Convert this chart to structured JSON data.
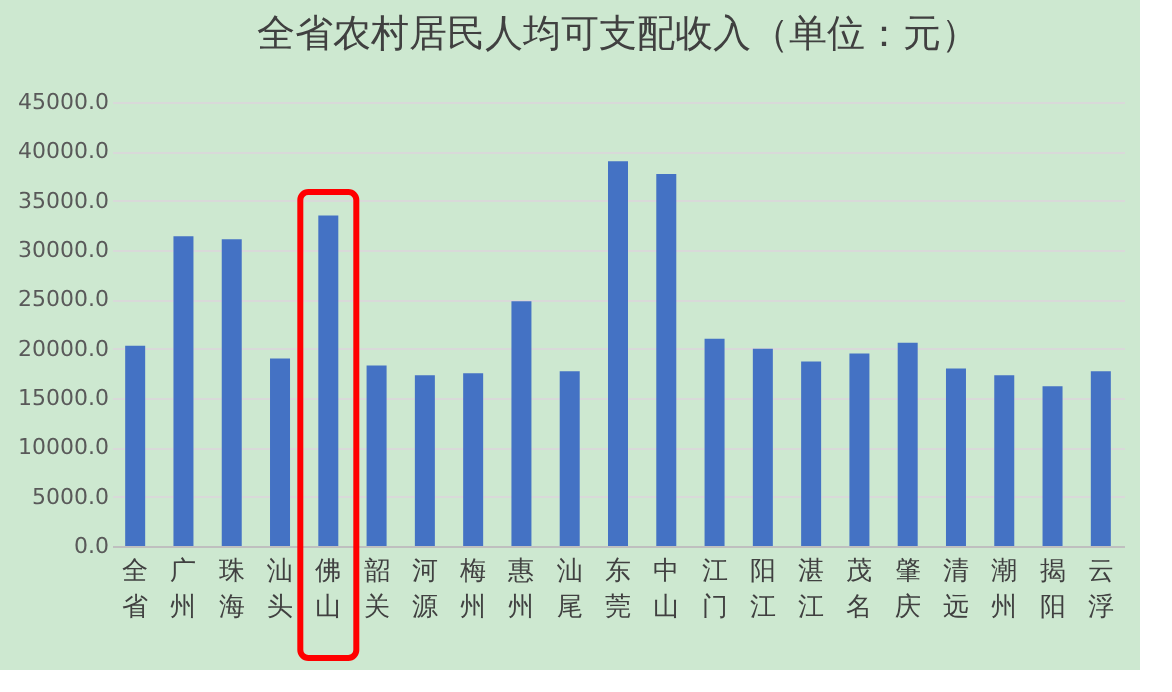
{
  "chart_data": {
    "type": "bar",
    "title": "全省农村居民人均可支配收入（单位：元）",
    "categories": [
      "全省",
      "广州",
      "珠海",
      "汕头",
      "佛山",
      "韶关",
      "河源",
      "梅州",
      "惠州",
      "汕尾",
      "东莞",
      "中山",
      "江门",
      "阳江",
      "湛江",
      "茂名",
      "肇庆",
      "清远",
      "潮州",
      "揭阳",
      "云浮"
    ],
    "values": [
      20300,
      31400,
      31100,
      19000,
      33500,
      18300,
      17300,
      17500,
      24800,
      17700,
      39000,
      37700,
      21000,
      20000,
      18700,
      19500,
      20600,
      18000,
      17300,
      16200,
      17700
    ],
    "color": "#4472c4",
    "ylim": [
      0,
      45000
    ],
    "yticks": [
      {
        "value": 0,
        "label": "0.0"
      },
      {
        "value": 5000,
        "label": "5000.0"
      },
      {
        "value": 10000,
        "label": "10000.0"
      },
      {
        "value": 15000,
        "label": "15000.0"
      },
      {
        "value": 20000,
        "label": "20000.0"
      },
      {
        "value": 25000,
        "label": "25000.0"
      },
      {
        "value": 30000,
        "label": "30000.0"
      },
      {
        "value": 35000,
        "label": "35000.0"
      },
      {
        "value": 40000,
        "label": "40000.0"
      },
      {
        "value": 45000,
        "label": "45000.0"
      }
    ],
    "grid": "y"
  }
}
